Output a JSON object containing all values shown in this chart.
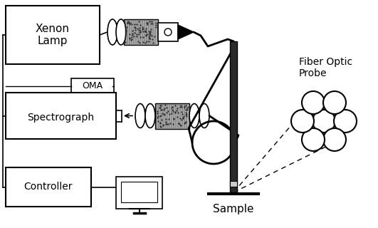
{
  "bg_color": "#ffffff",
  "line_color": "#000000",
  "xenon_lamp_label": "Xenon\nLamp",
  "oma_label": "OMA",
  "spectrograph_label": "Spectrograph",
  "controller_label": "Controller",
  "fiber_optic_label": "Fiber Optic\nProbe",
  "sample_label": "Sample",
  "figsize": [
    5.31,
    3.2
  ],
  "dpi": 100
}
